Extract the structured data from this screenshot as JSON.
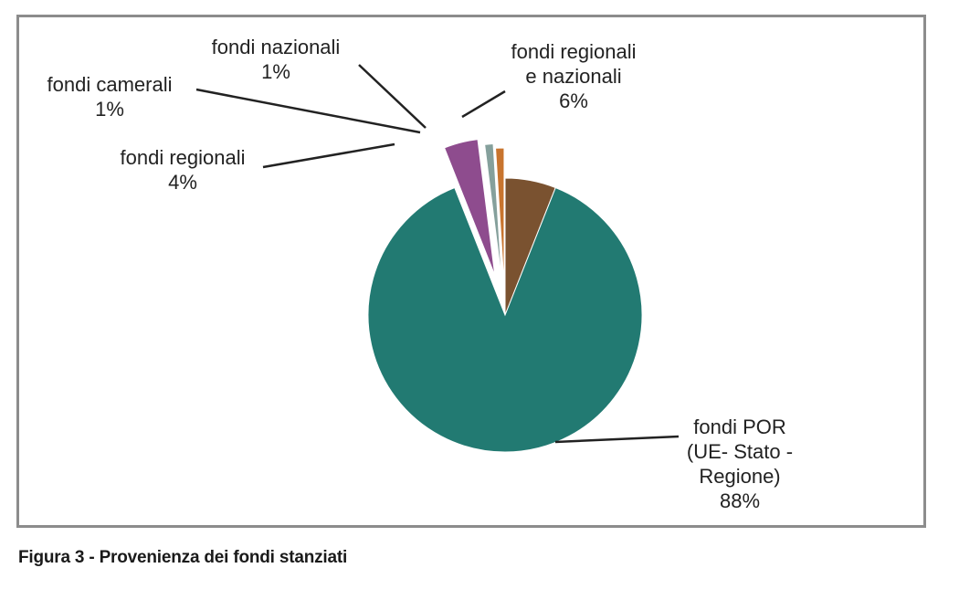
{
  "chart_data": {
    "type": "pie",
    "slices": [
      {
        "label": "fondi regionali e nazionali",
        "lines": [
          "fondi regionali",
          "e nazionali",
          "6%"
        ],
        "value": 6,
        "color": "#7a5230"
      },
      {
        "label": "fondi POR (UE- Stato - Regione)",
        "lines": [
          "fondi POR",
          "(UE- Stato -",
          "Regione)",
          "88%"
        ],
        "value": 88,
        "color": "#227a72"
      },
      {
        "label": "fondi regionali",
        "lines": [
          "fondi regionali",
          "4%"
        ],
        "value": 4,
        "color": "#8e4c8e"
      },
      {
        "label": "fondi camerali",
        "lines": [
          "fondi camerali",
          "1%"
        ],
        "value": 1,
        "color": "#85a09c"
      },
      {
        "label": "fondi nazionali",
        "lines": [
          "fondi nazionali",
          "1%"
        ],
        "value": 1,
        "color": "#c8742e"
      }
    ]
  },
  "caption": "Figura 3 - Provenienza dei fondi stanziati"
}
